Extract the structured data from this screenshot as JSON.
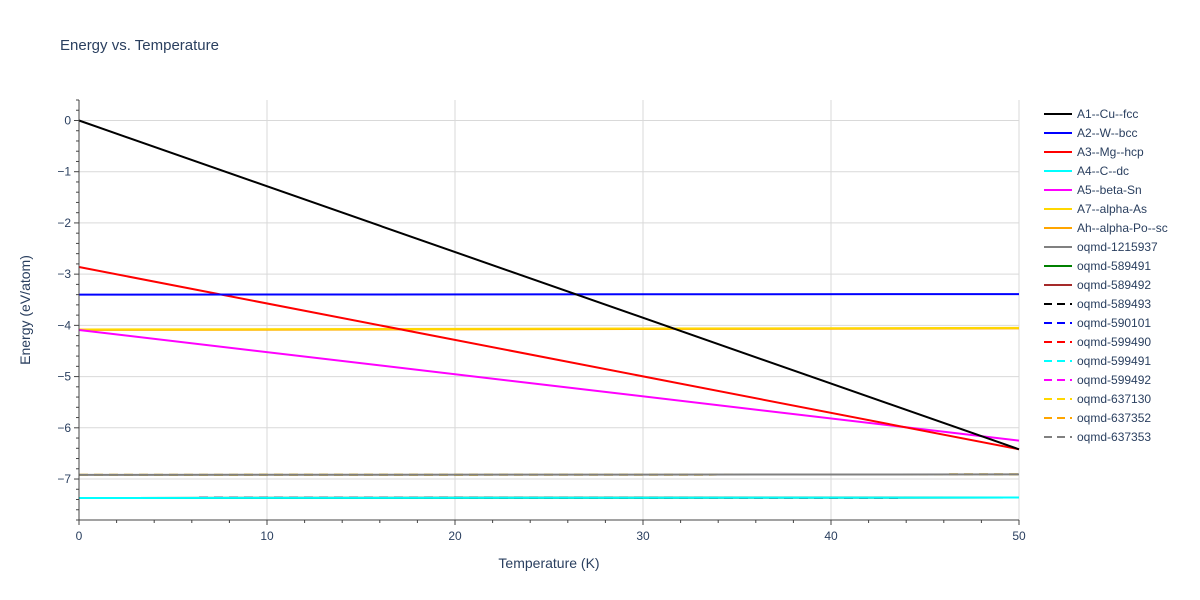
{
  "chart_data": {
    "type": "line",
    "title": "Energy vs. Temperature",
    "xlabel": "Temperature (K)",
    "ylabel": "Energy (eV/atom)",
    "xlim": [
      0,
      50
    ],
    "ylim": [
      -7.8,
      0.4
    ],
    "xticks": [
      0,
      10,
      20,
      30,
      40,
      50
    ],
    "yticks": [
      0,
      -1,
      -2,
      -3,
      -4,
      -5,
      -6,
      -7
    ],
    "ytick_labels": [
      "0",
      "−1",
      "−2",
      "−3",
      "−4",
      "−5",
      "−6",
      "−7"
    ],
    "grid": true,
    "legend_position": "right",
    "series": [
      {
        "name": "A1--Cu--fcc",
        "color": "#000000",
        "dash": "solid",
        "x": [
          0,
          50
        ],
        "y": [
          0.0,
          -6.42
        ]
      },
      {
        "name": "A2--W--bcc",
        "color": "#0000ff",
        "dash": "solid",
        "x": [
          0,
          50
        ],
        "y": [
          -3.4,
          -3.39
        ]
      },
      {
        "name": "A3--Mg--hcp",
        "color": "#ff0000",
        "dash": "solid",
        "x": [
          0,
          50
        ],
        "y": [
          -2.86,
          -6.42
        ]
      },
      {
        "name": "A4--C--dc",
        "color": "#00ffff",
        "dash": "solid",
        "x": [
          0,
          50
        ],
        "y": [
          -7.37,
          -7.36
        ]
      },
      {
        "name": "A5--beta-Sn",
        "color": "#ff00ff",
        "dash": "solid",
        "x": [
          0,
          50
        ],
        "y": [
          -4.09,
          -6.25
        ]
      },
      {
        "name": "A7--alpha-As",
        "color": "#ffd700",
        "dash": "solid",
        "x": [
          0,
          50
        ],
        "y": [
          -4.08,
          -4.05
        ]
      },
      {
        "name": "Ah--alpha-Po--sc",
        "color": "#ffa500",
        "dash": "solid",
        "x": [
          0,
          50
        ],
        "y": [
          -4.09,
          -4.06
        ]
      },
      {
        "name": "oqmd-1215937",
        "color": "#808080",
        "dash": "solid",
        "x": [
          0,
          50
        ],
        "y": [
          -6.92,
          -6.91
        ]
      },
      {
        "name": "oqmd-589491",
        "color": "#008000",
        "dash": "solid",
        "x": [
          0,
          50
        ],
        "y": [
          -7.37,
          -7.36
        ]
      },
      {
        "name": "oqmd-589492",
        "color": "#a52a2a",
        "dash": "solid",
        "x": [
          0,
          50
        ],
        "y": [
          -7.37,
          -7.36
        ]
      },
      {
        "name": "oqmd-589493",
        "color": "#000000",
        "dash": "dash",
        "x": [
          0,
          50
        ],
        "y": [
          -7.37,
          -7.36
        ]
      },
      {
        "name": "oqmd-590101",
        "color": "#0000ff",
        "dash": "dash",
        "x": [
          0,
          50
        ],
        "y": [
          -7.37,
          -7.36
        ]
      },
      {
        "name": "oqmd-599490",
        "color": "#ff0000",
        "dash": "dash",
        "x": [
          0,
          50
        ],
        "y": [
          -7.37,
          -7.36
        ]
      },
      {
        "name": "oqmd-599491",
        "color": "#00ffff",
        "dash": "dash",
        "x": [
          0,
          50
        ],
        "y": [
          -7.37,
          -7.36
        ]
      },
      {
        "name": "oqmd-599492",
        "color": "#ff00ff",
        "dash": "dash",
        "x": [
          0,
          50
        ],
        "y": [
          -7.37,
          -7.36
        ]
      },
      {
        "name": "oqmd-637130",
        "color": "#ffd700",
        "dash": "dash",
        "x": [
          0,
          50
        ],
        "y": [
          -6.92,
          -6.91
        ]
      },
      {
        "name": "oqmd-637352",
        "color": "#ffa500",
        "dash": "dash",
        "x": [
          0,
          50
        ],
        "y": [
          -6.92,
          -6.91
        ]
      },
      {
        "name": "oqmd-637353",
        "color": "#808080",
        "dash": "dash",
        "x": [
          0,
          50
        ],
        "y": [
          -6.92,
          -6.91
        ]
      }
    ]
  }
}
